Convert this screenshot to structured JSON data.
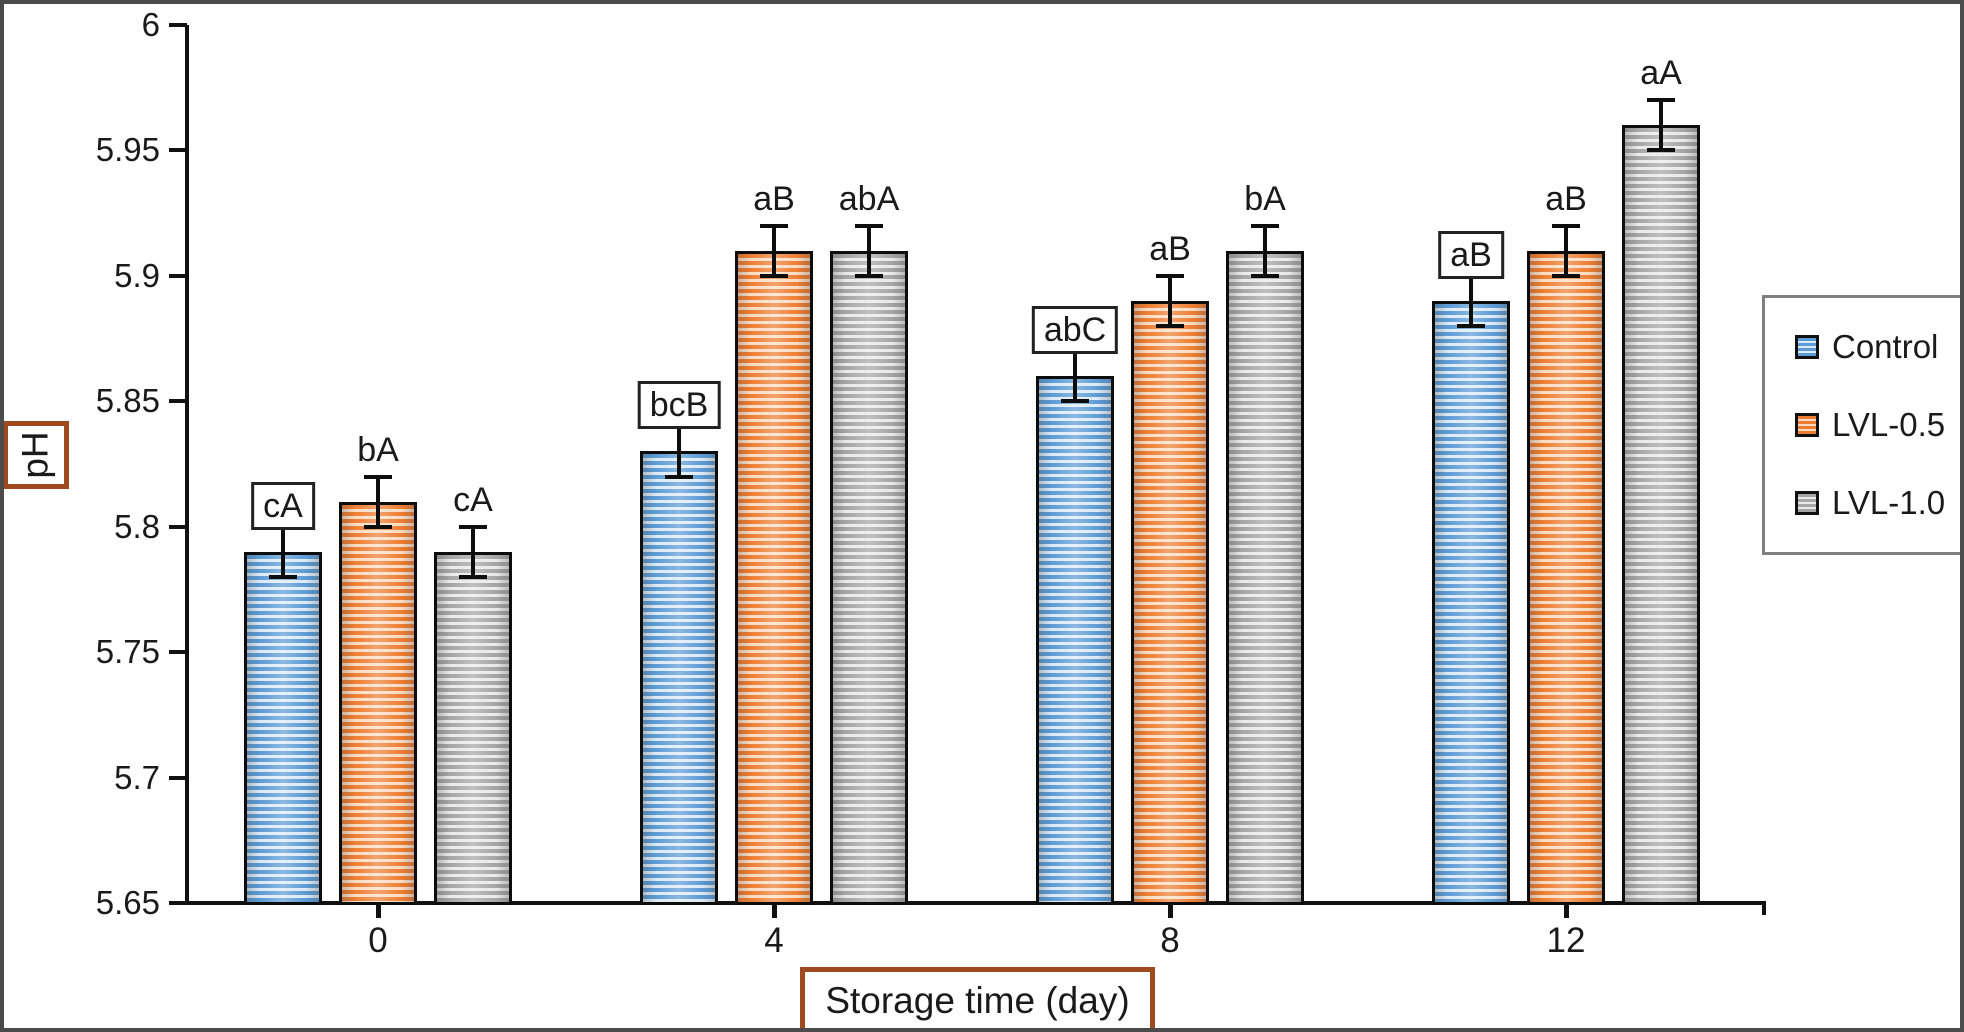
{
  "figure": {
    "background": "#ffffff",
    "frame_color": "#4b4b4b",
    "axis_color": "#111111",
    "axis_title_box_border": "#9e4a1e",
    "legend_border": "#7f7f7f"
  },
  "chart_data": {
    "type": "bar",
    "title": "",
    "xlabel": "Storage time (day)",
    "ylabel": "pH",
    "ylim": [
      5.65,
      6
    ],
    "grid": false,
    "legend_position": "right-outside",
    "yticks": [
      {
        "v": 6.0,
        "label": "6"
      },
      {
        "v": 5.95,
        "label": "5.95"
      },
      {
        "v": 5.9,
        "label": "5.9"
      },
      {
        "v": 5.85,
        "label": "5.85"
      },
      {
        "v": 5.8,
        "label": "5.8"
      },
      {
        "v": 5.75,
        "label": "5.75"
      },
      {
        "v": 5.7,
        "label": "5.7"
      },
      {
        "v": 5.65,
        "label": "5.65"
      }
    ],
    "categories": [
      "0",
      "4",
      "8",
      "12"
    ],
    "series": [
      {
        "name": "Control",
        "color": "#5B9BD5",
        "stripe": "#DCEAF7",
        "values": [
          5.79,
          5.83,
          5.86,
          5.89
        ],
        "errors": [
          0.01,
          0.01,
          0.01,
          0.01
        ],
        "labels": [
          "cA",
          "bcB",
          "abC",
          "aB"
        ],
        "boxed": [
          true,
          true,
          true,
          true
        ]
      },
      {
        "name": "LVL-0.5",
        "color": "#ED7D31",
        "stripe": "#FBDCC3",
        "values": [
          5.81,
          5.91,
          5.89,
          5.91
        ],
        "errors": [
          0.01,
          0.01,
          0.01,
          0.01
        ],
        "labels": [
          "bA",
          "aB",
          "aB",
          "aB"
        ],
        "boxed": [
          false,
          false,
          false,
          false
        ]
      },
      {
        "name": "LVL-1.0",
        "color": "#A5A5A5",
        "stripe": "#E9E9E9",
        "values": [
          5.79,
          5.91,
          5.91,
          5.96
        ],
        "errors": [
          0.01,
          0.01,
          0.01,
          0.01
        ],
        "labels": [
          "cA",
          "abA",
          "bA",
          "aA"
        ],
        "boxed": [
          false,
          false,
          false,
          false
        ]
      }
    ]
  }
}
